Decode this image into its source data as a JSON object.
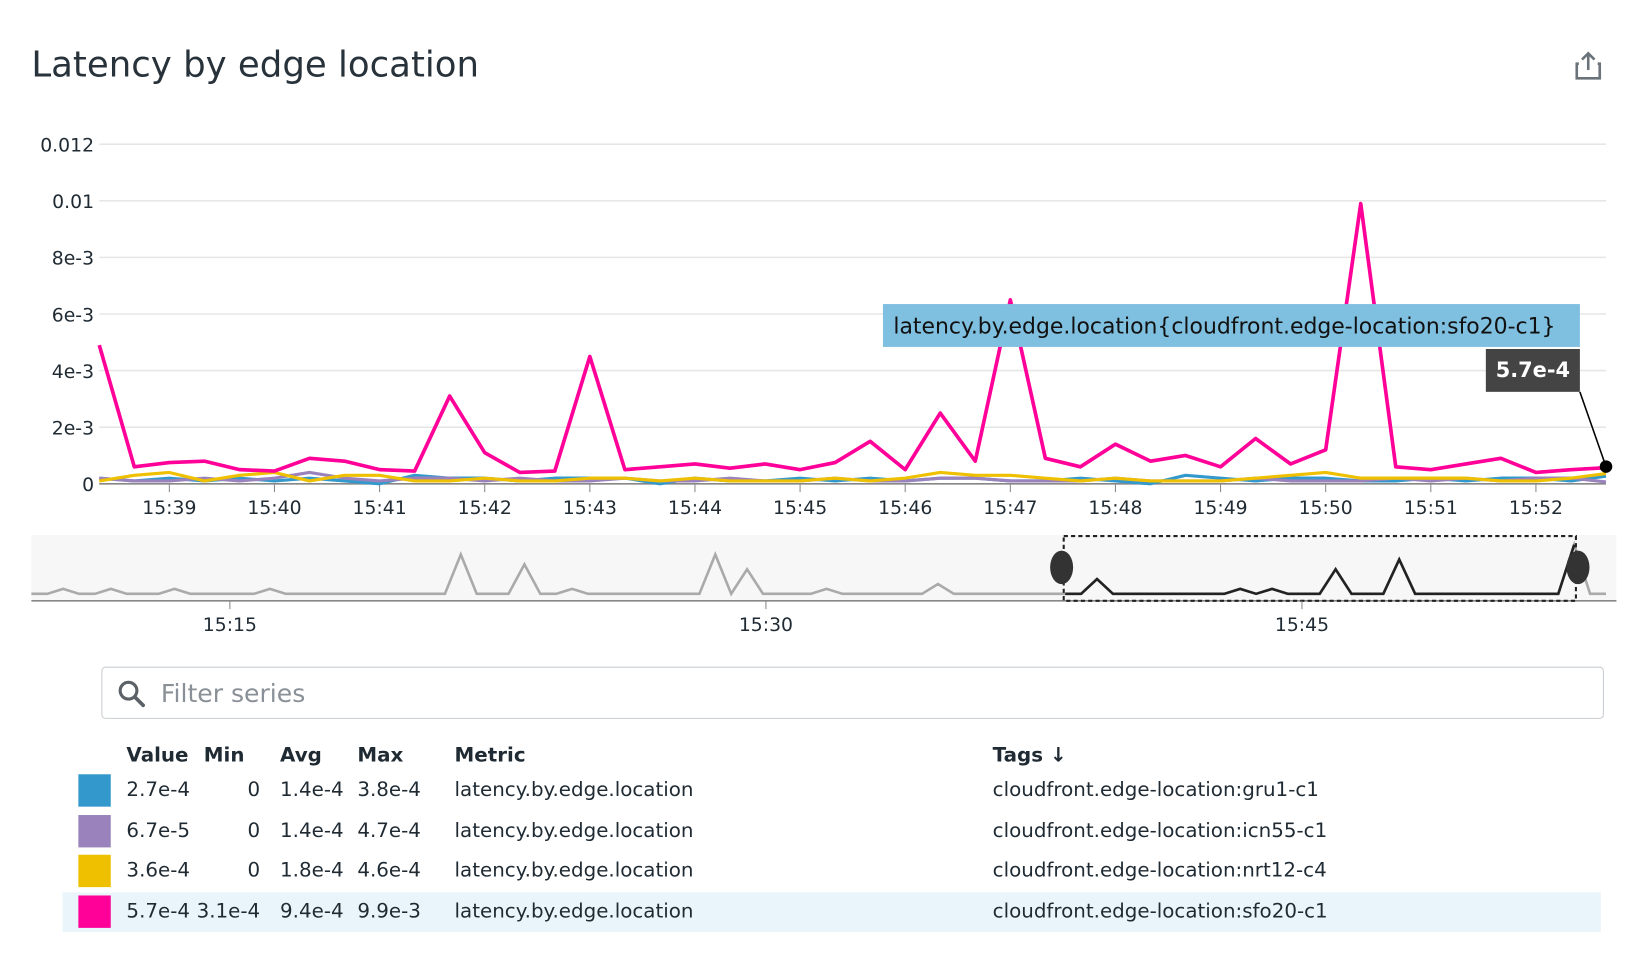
{
  "header": {
    "title": "Latency by edge location",
    "share_icon": "share-export-icon"
  },
  "chart_data": {
    "type": "line",
    "title": "Latency by edge location",
    "ylim": [
      0,
      0.012
    ],
    "yticks": [
      "0",
      "2e-3",
      "4e-3",
      "6e-3",
      "8e-3",
      "0.01",
      "0.012"
    ],
    "ytick_values": [
      0,
      0.002,
      0.004,
      0.006,
      0.008,
      0.01,
      0.012
    ],
    "xticks": [
      "15:39",
      "15:40",
      "15:41",
      "15:42",
      "15:43",
      "15:44",
      "15:45",
      "15:46",
      "15:47",
      "15:48",
      "15:49",
      "15:50",
      "15:51",
      "15:52"
    ],
    "xrange": [
      "15:38:20",
      "15:52:40"
    ],
    "grid": true,
    "x": [
      "15:38:20",
      "15:38:40",
      "15:39:00",
      "15:39:20",
      "15:39:40",
      "15:40:00",
      "15:40:20",
      "15:40:40",
      "15:41:00",
      "15:41:20",
      "15:41:40",
      "15:42:00",
      "15:42:20",
      "15:42:40",
      "15:43:00",
      "15:43:20",
      "15:43:40",
      "15:44:00",
      "15:44:20",
      "15:44:40",
      "15:45:00",
      "15:45:20",
      "15:45:40",
      "15:46:00",
      "15:46:20",
      "15:46:40",
      "15:47:00",
      "15:47:20",
      "15:47:40",
      "15:48:00",
      "15:48:20",
      "15:48:40",
      "15:49:00",
      "15:49:20",
      "15:49:40",
      "15:50:00",
      "15:50:20",
      "15:50:40",
      "15:51:00",
      "15:51:20",
      "15:51:40",
      "15:52:00",
      "15:52:20",
      "15:52:40"
    ],
    "series": [
      {
        "name": "cloudfront.edge-location:gru1-c1",
        "color": "#3399cc",
        "values": [
          0.0002,
          0.0001,
          0.0002,
          0.0001,
          0.0002,
          0.0001,
          0.0002,
          0.0001,
          0.0,
          0.0003,
          0.0002,
          0.0002,
          0.0001,
          0.0002,
          0.0002,
          0.0002,
          0.0,
          0.0002,
          0.0001,
          0.0001,
          0.0002,
          0.0001,
          0.0002,
          0.0001,
          0.0002,
          0.0002,
          0.0001,
          0.0001,
          0.0002,
          0.0001,
          0.0,
          0.0003,
          0.0002,
          0.0001,
          0.0002,
          0.0002,
          0.0001,
          0.0001,
          0.0002,
          0.0001,
          0.0002,
          0.0002,
          0.0001,
          0.00027
        ]
      },
      {
        "name": "cloudfront.edge-location:icn55-c1",
        "color": "#9a82bc",
        "values": [
          0.0002,
          0.0001,
          0.0001,
          0.0002,
          0.0001,
          0.0002,
          0.0004,
          0.0002,
          0.0001,
          0.0002,
          0.0002,
          0.0001,
          0.0002,
          0.0001,
          0.0001,
          0.0002,
          0.0001,
          0.0001,
          0.0002,
          0.0001,
          0.0001,
          0.0002,
          0.0001,
          0.0001,
          0.0002,
          0.0002,
          0.0001,
          0.0001,
          0.0001,
          0.0002,
          0.0001,
          0.0001,
          0.0001,
          0.0002,
          0.0001,
          0.0001,
          0.0001,
          0.0002,
          0.0001,
          0.0002,
          0.0001,
          0.0002,
          0.0002,
          6.7e-05
        ]
      },
      {
        "name": "cloudfront.edge-location:nrt12-c4",
        "color": "#eec000",
        "values": [
          0.0001,
          0.0003,
          0.0004,
          0.0001,
          0.0003,
          0.0004,
          0.0001,
          0.0003,
          0.0003,
          0.0001,
          0.0001,
          0.0002,
          0.0001,
          0.0001,
          0.0002,
          0.0002,
          0.0001,
          0.0002,
          0.0001,
          0.0001,
          0.0001,
          0.0002,
          0.0001,
          0.0002,
          0.0004,
          0.0003,
          0.0003,
          0.0002,
          0.0001,
          0.0002,
          0.0001,
          0.0001,
          0.0001,
          0.0002,
          0.0003,
          0.0004,
          0.0002,
          0.0002,
          0.0002,
          0.0002,
          0.0001,
          0.0001,
          0.0002,
          0.00036
        ]
      },
      {
        "name": "cloudfront.edge-location:sfo20-c1",
        "color": "#ff0099",
        "values": [
          0.0049,
          0.0006,
          0.00075,
          0.0008,
          0.0005,
          0.00045,
          0.0009,
          0.0008,
          0.0005,
          0.00045,
          0.0031,
          0.0011,
          0.0004,
          0.00045,
          0.0045,
          0.0005,
          0.0006,
          0.0007,
          0.00055,
          0.0007,
          0.0005,
          0.00075,
          0.0015,
          0.0005,
          0.0025,
          0.0008,
          0.0065,
          0.0009,
          0.0006,
          0.0014,
          0.0008,
          0.001,
          0.0006,
          0.0016,
          0.0007,
          0.0012,
          0.0099,
          0.0006,
          0.0005,
          0.0007,
          0.0009,
          0.0004,
          0.0005,
          0.00057
        ]
      }
    ],
    "tooltip": {
      "label": "latency.by.edge.location{cloudfront.edge-location:sfo20-c1}",
      "value": "5.7e-4",
      "bg": "#7fbfdf"
    },
    "navigator": {
      "xticks": [
        "15:15",
        "15:30",
        "15:45"
      ],
      "color": "#aaaaaa",
      "selected_color": "#222222",
      "selection": [
        "15:38:20",
        "15:52:40"
      ],
      "values": [
        1,
        1,
        2,
        1,
        1,
        2,
        1,
        1,
        1,
        2,
        1,
        1,
        1,
        1,
        1,
        2,
        1,
        1,
        1,
        1,
        1,
        1,
        1,
        1,
        1,
        1,
        1,
        9,
        1,
        1,
        1,
        7,
        1,
        1,
        2,
        1,
        1,
        1,
        1,
        1,
        1,
        1,
        1,
        9,
        1,
        6,
        1,
        1,
        1,
        1,
        2,
        1,
        1,
        1,
        1,
        1,
        1,
        3,
        1,
        1,
        1,
        1,
        1,
        1,
        1,
        1,
        1,
        4,
        1,
        1,
        1,
        1,
        1,
        1,
        1,
        1,
        2,
        1,
        2,
        1,
        1,
        1,
        6,
        1,
        1,
        1,
        8,
        1,
        1,
        1,
        1,
        1,
        1,
        1,
        1,
        1,
        1,
        11,
        1,
        1
      ]
    }
  },
  "filter": {
    "placeholder": "Filter series",
    "value": "",
    "icon": "search-icon"
  },
  "legend": {
    "columns": {
      "value": "Value",
      "min": "Min",
      "avg": "Avg",
      "max": "Max",
      "metric": "Metric",
      "tags": "Tags ↓"
    },
    "rows": [
      {
        "color": "#3399cc",
        "value": "2.7e-4",
        "min": "0",
        "avg": "1.4e-4",
        "max": "3.8e-4",
        "metric": "latency.by.edge.location",
        "tags": "cloudfront.edge-location:gru1-c1"
      },
      {
        "color": "#9a82bc",
        "value": "6.7e-5",
        "min": "0",
        "avg": "1.4e-4",
        "max": "4.7e-4",
        "metric": "latency.by.edge.location",
        "tags": "cloudfront.edge-location:icn55-c1"
      },
      {
        "color": "#eec000",
        "value": "3.6e-4",
        "min": "0",
        "avg": "1.8e-4",
        "max": "4.6e-4",
        "metric": "latency.by.edge.location",
        "tags": "cloudfront.edge-location:nrt12-c4"
      },
      {
        "color": "#ff0099",
        "value": "5.7e-4",
        "min": "3.1e-4",
        "avg": "9.4e-4",
        "max": "9.9e-3",
        "metric": "latency.by.edge.location",
        "tags": "cloudfront.edge-location:sfo20-c1",
        "selected": true
      }
    ]
  }
}
